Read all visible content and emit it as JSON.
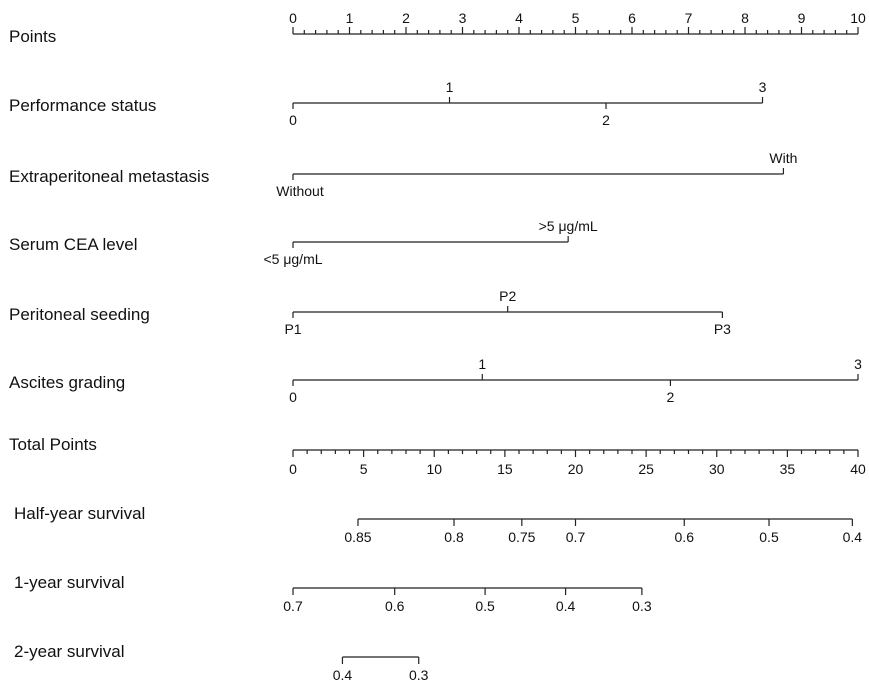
{
  "chart_data": {
    "type": "nomogram",
    "points_scale": {
      "label": "Points",
      "min": 0,
      "max": 10,
      "major_ticks": [
        "0",
        "1",
        "2",
        "3",
        "4",
        "5",
        "6",
        "7",
        "8",
        "9",
        "10"
      ],
      "minor_step": 0.2
    },
    "predictors": [
      {
        "label": "Performance status",
        "values": [
          {
            "text": "0",
            "points": 0,
            "side": "below"
          },
          {
            "text": "1",
            "points": 2.77,
            "side": "above"
          },
          {
            "text": "2",
            "points": 5.54,
            "side": "below"
          },
          {
            "text": "3",
            "points": 8.31,
            "side": "above"
          }
        ]
      },
      {
        "label": "Extraperitoneal metastasis",
        "values": [
          {
            "text": "Without",
            "points": 0,
            "side": "below"
          },
          {
            "text": "With",
            "points": 8.68,
            "side": "above"
          }
        ]
      },
      {
        "label": "Serum CEA level",
        "values": [
          {
            "text": "<5 μg/mL",
            "points": 0,
            "side": "below"
          },
          {
            "text": ">5 μg/mL",
            "points": 4.87,
            "side": "above"
          }
        ]
      },
      {
        "label": "Peritoneal seeding",
        "values": [
          {
            "text": "P1",
            "points": 0,
            "side": "below"
          },
          {
            "text": "P2",
            "points": 3.8,
            "side": "above"
          },
          {
            "text": "P3",
            "points": 7.6,
            "side": "below"
          }
        ]
      },
      {
        "label": "Ascites grading",
        "values": [
          {
            "text": "0",
            "points": 0,
            "side": "below"
          },
          {
            "text": "1",
            "points": 3.35,
            "side": "above"
          },
          {
            "text": "2",
            "points": 6.68,
            "side": "below"
          },
          {
            "text": "3",
            "points": 10,
            "side": "above"
          }
        ]
      }
    ],
    "total_points_scale": {
      "label": "Total Points",
      "min": 0,
      "max": 40,
      "major_ticks": [
        "0",
        "5",
        "10",
        "15",
        "20",
        "25",
        "30",
        "35",
        "40"
      ],
      "minor_step": 1
    },
    "survival_scales": [
      {
        "label": "Half-year survival",
        "ticks": [
          {
            "text": "0.85",
            "total": 4.6
          },
          {
            "text": "0.8",
            "total": 11.4
          },
          {
            "text": "0.75",
            "total": 16.2
          },
          {
            "text": "0.7",
            "total": 20.0
          },
          {
            "text": "0.6",
            "total": 27.7
          },
          {
            "text": "0.5",
            "total": 33.7
          },
          {
            "text": "0.4",
            "total": 39.6
          }
        ]
      },
      {
        "label": "1-year survival",
        "ticks": [
          {
            "text": "0.7",
            "total": 0
          },
          {
            "text": "0.6",
            "total": 7.2
          },
          {
            "text": "0.5",
            "total": 13.6
          },
          {
            "text": "0.4",
            "total": 19.3
          },
          {
            "text": "0.3",
            "total": 24.7
          }
        ]
      },
      {
        "label": "2-year survival",
        "ticks": [
          {
            "text": "0.4",
            "total": 3.5
          },
          {
            "text": "0.3",
            "total": 8.9
          }
        ]
      }
    ]
  }
}
